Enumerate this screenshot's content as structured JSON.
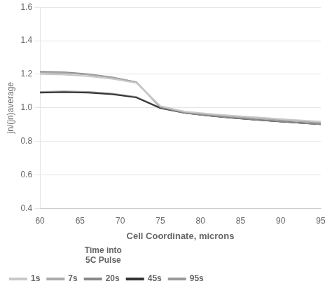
{
  "chart_data": {
    "type": "line",
    "xlabel": "Cell Coordinate, microns",
    "ylabel": "jn/(jn)average",
    "x": [
      60,
      63,
      66,
      69,
      72,
      75,
      78,
      81,
      84,
      87,
      90,
      93,
      95
    ],
    "series": [
      {
        "name": "1s",
        "color": "#c8c8c8",
        "values": [
          1.2,
          1.197,
          1.188,
          1.172,
          1.148,
          1.01,
          0.978,
          0.964,
          0.953,
          0.943,
          0.933,
          0.923,
          0.917
        ]
      },
      {
        "name": "7s",
        "color": "#aaaaaa",
        "values": [
          1.21,
          1.207,
          1.197,
          1.18,
          1.153,
          1.008,
          0.975,
          0.96,
          0.948,
          0.937,
          0.927,
          0.917,
          0.91
        ]
      },
      {
        "name": "20s",
        "color": "#888888",
        "values": [
          1.215,
          1.212,
          1.201,
          1.182,
          1.153,
          1.003,
          0.969,
          0.953,
          0.94,
          0.929,
          0.918,
          0.908,
          0.901
        ]
      },
      {
        "name": "45s",
        "color": "#333333",
        "values": [
          1.09,
          1.093,
          1.09,
          1.08,
          1.061,
          0.998,
          0.969,
          0.953,
          0.939,
          0.928,
          0.917,
          0.908,
          0.901
        ]
      },
      {
        "name": "95s",
        "color": "#999999",
        "values": [
          1.095,
          1.098,
          1.095,
          1.085,
          1.065,
          1.0,
          0.97,
          0.954,
          0.94,
          0.929,
          0.918,
          0.908,
          0.901
        ]
      }
    ],
    "legend_title": "Time into\n5C Pulse",
    "legend": "lower left",
    "xlim": [
      60,
      95
    ],
    "ylim": [
      0.4,
      1.6
    ],
    "xticks": [
      60,
      65,
      70,
      75,
      80,
      85,
      90,
      95
    ],
    "yticks": [
      0.4,
      0.6,
      0.8,
      {
        "value": 1.0,
        "label": "1.0"
      },
      1.2,
      1.4,
      1.6
    ],
    "grid": "y"
  }
}
